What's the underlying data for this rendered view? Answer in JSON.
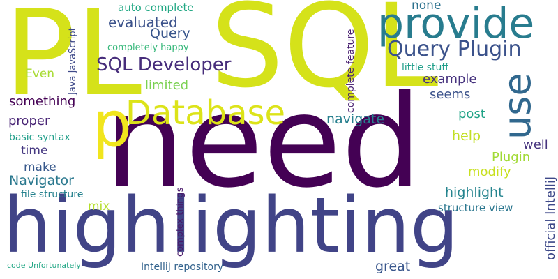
{
  "wordcloud": {
    "words": [
      {
        "text": "PL",
        "color": "#d5e21a"
      },
      {
        "text": "SQL",
        "color": "#d5e21a"
      },
      {
        "text": "need",
        "color": "#440154"
      },
      {
        "text": "highlighting",
        "color": "#414487"
      },
      {
        "text": "provide",
        "color": "#287c8e"
      },
      {
        "text": "Database",
        "color": "#dce319"
      },
      {
        "text": "p",
        "color": "#f1e51d"
      },
      {
        "text": "use",
        "color": "#31688e"
      },
      {
        "text": "Query Plugin",
        "color": "#3b528b"
      },
      {
        "text": "SQL Developer",
        "color": "#472d7b"
      },
      {
        "text": "evaluated",
        "color": "#3b528b"
      },
      {
        "text": "Query",
        "color": "#39568c"
      },
      {
        "text": "auto complete",
        "color": "#22a884"
      },
      {
        "text": "none",
        "color": "#2c728e"
      },
      {
        "text": "completely happy",
        "color": "#35b779"
      },
      {
        "text": "Java JavaScript",
        "color": "#3e4989"
      },
      {
        "text": "complete feature",
        "color": "#481f70"
      },
      {
        "text": "Even",
        "color": "#a8db34"
      },
      {
        "text": "limited",
        "color": "#7ad151"
      },
      {
        "text": "little stuff",
        "color": "#1f9e89"
      },
      {
        "text": "example",
        "color": "#46327e"
      },
      {
        "text": "something",
        "color": "#440154"
      },
      {
        "text": "seems",
        "color": "#3b528b"
      },
      {
        "text": "post",
        "color": "#20a386"
      },
      {
        "text": "official IntelliJ",
        "color": "#3e4989"
      },
      {
        "text": "navigate",
        "color": "#277f8e"
      },
      {
        "text": "proper",
        "color": "#482475"
      },
      {
        "text": "basic syntax",
        "color": "#1f9e89"
      },
      {
        "text": "help",
        "color": "#c2df23"
      },
      {
        "text": "time",
        "color": "#453781"
      },
      {
        "text": "well",
        "color": "#46337e"
      },
      {
        "text": "make",
        "color": "#38598c"
      },
      {
        "text": "Plugin",
        "color": "#a2da37"
      },
      {
        "text": "Navigator",
        "color": "#2a788e"
      },
      {
        "text": "modify",
        "color": "#c8e020"
      },
      {
        "text": "mix",
        "color": "#b5de2b"
      },
      {
        "text": "file structure",
        "color": "#26828e"
      },
      {
        "text": "highlight",
        "color": "#25848e"
      },
      {
        "text": "structure view",
        "color": "#2a768e"
      },
      {
        "text": "complex things",
        "color": "#481769"
      },
      {
        "text": "code Unfortunately",
        "color": "#22a785"
      },
      {
        "text": "IntelliJ repository",
        "color": "#33638d"
      },
      {
        "text": "great",
        "color": "#39568c"
      }
    ]
  }
}
